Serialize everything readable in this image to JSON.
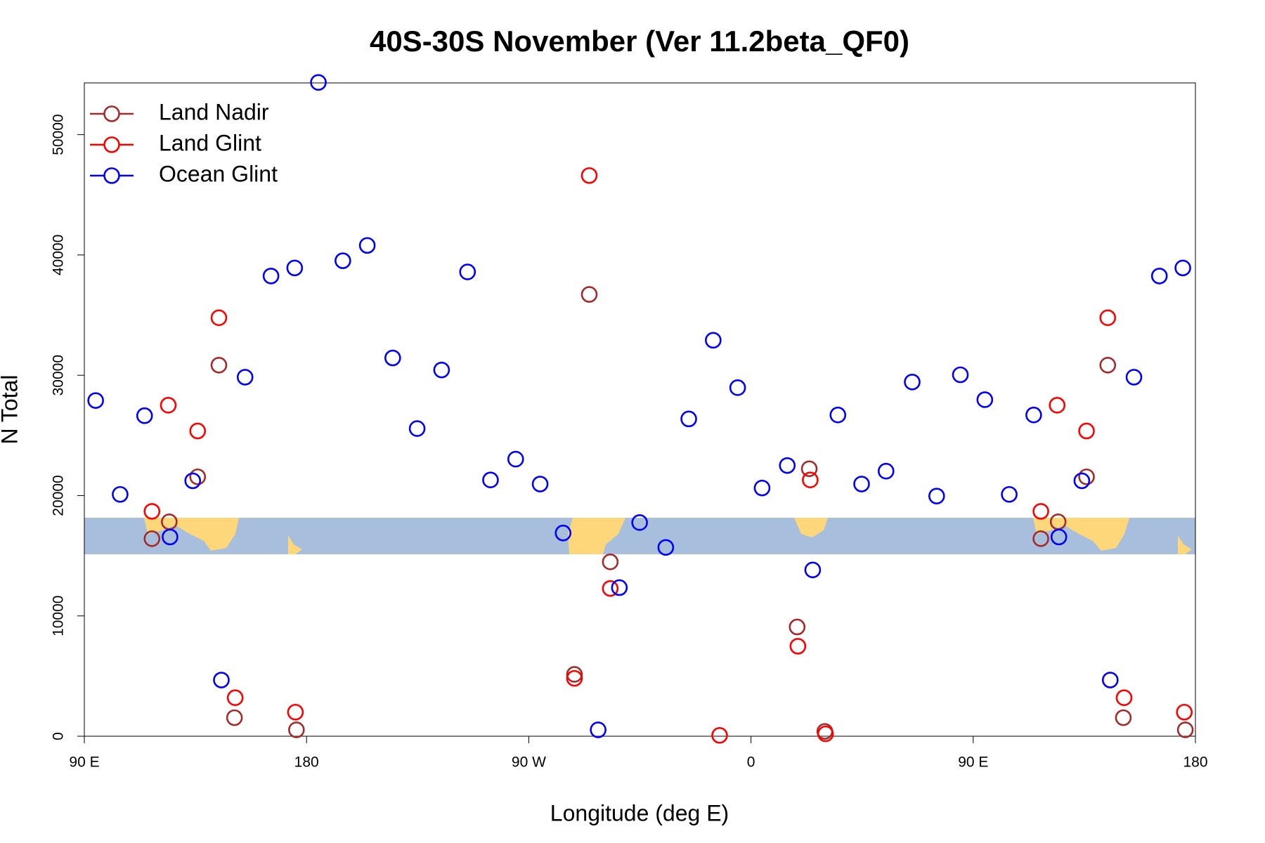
{
  "chart_data": {
    "type": "scatter",
    "title": "40S-30S November (Ver 11.2beta_QF0)",
    "x_label": "Longitude (deg E)",
    "y_label": "N Total",
    "xlim": [
      90,
      540
    ],
    "ylim": [
      0,
      54300
    ],
    "xticks": [
      {
        "value": 90,
        "label": "90 E"
      },
      180,
      {
        "value": 270,
        "label": "90 W"
      },
      {
        "value": 360,
        "label": "0"
      },
      {
        "value": 450,
        "label": "90 E"
      },
      {
        "value": 540,
        "label": "180"
      }
    ],
    "yticks": [
      0,
      10000,
      20000,
      30000,
      40000,
      50000
    ],
    "legend": "top-left",
    "series": [
      {
        "name": "Land Nadir",
        "color": "#a52a2a",
        "x": [
          117.4,
          124.4,
          135.9,
          144.5,
          150.8,
          175.9,
          294.5,
          288.5,
          303.0,
          378.7,
          383.6,
          389.9,
          477.4,
          484.4,
          495.9,
          504.5,
          510.8,
          535.9
        ],
        "values": [
          16420,
          17820,
          21560,
          30840,
          1540,
          530,
          36720,
          5140,
          14490,
          9080,
          22230,
          400,
          16420,
          17820,
          21560,
          30840,
          1540,
          530
        ]
      },
      {
        "name": "Land Glint",
        "color": "#ff0000",
        "x": [
          117.4,
          124.0,
          135.9,
          144.5,
          151.1,
          175.5,
          294.5,
          288.5,
          303.0,
          347.3,
          379.0,
          384.0,
          390.2,
          477.4,
          484.0,
          495.9,
          504.5,
          511.1,
          535.5
        ],
        "values": [
          18690,
          27510,
          25370,
          34780,
          3200,
          2000,
          46600,
          4810,
          12280,
          70,
          7480,
          21300,
          200,
          18690,
          27510,
          25370,
          34780,
          3200,
          2000
        ]
      },
      {
        "name": "Ocean Glint",
        "color": "#0000ff",
        "x": [
          94.6,
          104.5,
          114.4,
          124.7,
          133.9,
          145.5,
          155.1,
          165.6,
          175.2,
          184.8,
          194.7,
          204.6,
          214.9,
          224.8,
          234.7,
          245.2,
          254.5,
          264.7,
          274.6,
          283.9,
          298.1,
          306.7,
          314.9,
          325.5,
          334.8,
          344.7,
          354.6,
          364.5,
          374.7,
          385.0,
          395.2,
          404.8,
          414.7,
          425.3,
          435.2,
          444.8,
          454.7,
          464.6,
          474.5,
          484.7,
          494.0,
          505.5,
          515.1,
          525.4,
          534.9
        ],
        "values": [
          27900,
          20100,
          26640,
          16560,
          21230,
          4670,
          29840,
          38250,
          38920,
          54340,
          39520,
          40790,
          31440,
          25570,
          30440,
          38590,
          21300,
          23030,
          20960,
          16890,
          530,
          12350,
          17760,
          15690,
          26370,
          32910,
          28970,
          20630,
          22500,
          13820,
          26700,
          20960,
          22030,
          29440,
          19960,
          30040,
          27970,
          20100,
          26700,
          16560,
          21230,
          4670,
          29840,
          38250,
          38920
        ]
      }
    ]
  }
}
